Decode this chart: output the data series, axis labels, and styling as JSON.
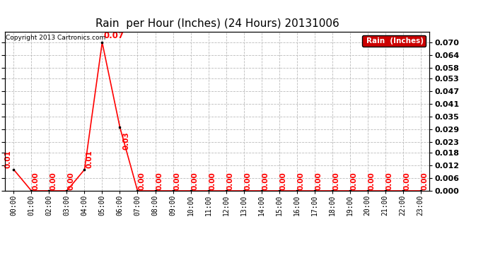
{
  "title": "Rain  per Hour (Inches) (24 Hours) 20131006",
  "copyright": "Copyright 2013 Cartronics.com",
  "legend_label": "Rain  (Inches)",
  "hours": [
    "00:00",
    "01:00",
    "02:00",
    "03:00",
    "04:00",
    "05:00",
    "06:00",
    "07:00",
    "08:00",
    "09:00",
    "10:00",
    "11:00",
    "12:00",
    "13:00",
    "14:00",
    "15:00",
    "16:00",
    "17:00",
    "18:00",
    "19:00",
    "20:00",
    "21:00",
    "22:00",
    "23:00"
  ],
  "values": [
    0.01,
    0.0,
    0.0,
    0.0,
    0.01,
    0.07,
    0.03,
    0.0,
    0.0,
    0.0,
    0.0,
    0.0,
    0.0,
    0.0,
    0.0,
    0.0,
    0.0,
    0.0,
    0.0,
    0.0,
    0.0,
    0.0,
    0.0,
    0.0
  ],
  "ylim": [
    0.0,
    0.075
  ],
  "yticks": [
    0.0,
    0.006,
    0.012,
    0.018,
    0.023,
    0.029,
    0.035,
    0.041,
    0.047,
    0.053,
    0.058,
    0.064,
    0.07
  ],
  "line_color": "#ff0000",
  "marker_color": "#000000",
  "label_color": "#ff0000",
  "background_color": "#ffffff",
  "grid_color": "#bbbbbb",
  "title_fontsize": 11,
  "copyright_fontsize": 6.5,
  "legend_bg": "#cc0000",
  "legend_fg": "#ffffff",
  "annotation_fontsize": 7.5
}
